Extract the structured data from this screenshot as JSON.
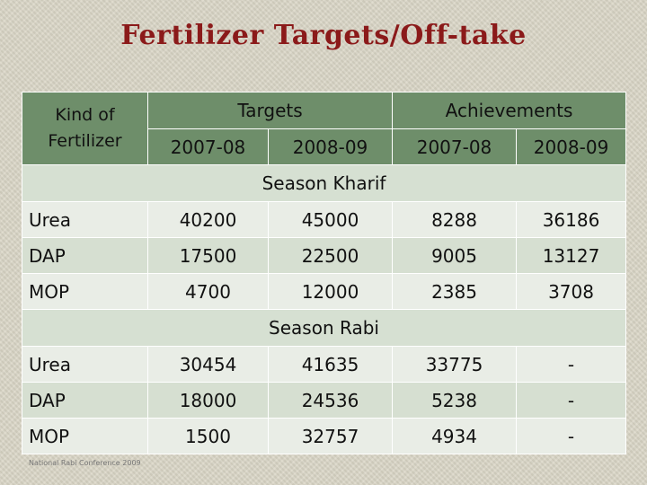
{
  "title": "Fertilizer Targets/Off-take",
  "header": {
    "kind_label": "Kind of Fertilizer",
    "targets_label": "Targets",
    "achievements_label": "Achievements",
    "years": [
      "2007-08",
      "2008-09",
      "2007-08",
      "2008-09"
    ]
  },
  "kharif": {
    "label": "Season Kharif",
    "rows": [
      {
        "kind": "Urea",
        "values": [
          "40200",
          "45000",
          "8288",
          "36186"
        ]
      },
      {
        "kind": "DAP",
        "values": [
          "17500",
          "22500",
          "9005",
          "13127"
        ]
      },
      {
        "kind": "MOP",
        "values": [
          "4700",
          "12000",
          "2385",
          "3708"
        ]
      }
    ]
  },
  "rabi": {
    "label": "Season Rabi",
    "rows": [
      {
        "kind": "Urea",
        "values": [
          "30454",
          "41635",
          "33775",
          "-"
        ]
      },
      {
        "kind": "DAP",
        "values": [
          "18000",
          "24536",
          "5238",
          "-"
        ]
      },
      {
        "kind": "MOP",
        "values": [
          "1500",
          "32757",
          "4934",
          "-"
        ]
      }
    ]
  },
  "footer": "National Rabi Conference 2009"
}
